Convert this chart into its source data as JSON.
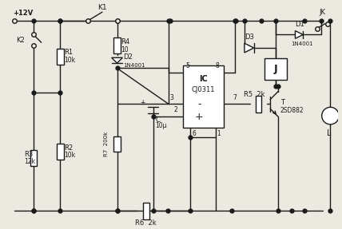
{
  "bg_color": "#eceae0",
  "line_color": "#1a1a1a",
  "line_width": 1.0,
  "fig_width": 4.28,
  "fig_height": 2.87,
  "dpi": 100,
  "xlim": [
    0,
    428
  ],
  "ylim": [
    0,
    287
  ]
}
